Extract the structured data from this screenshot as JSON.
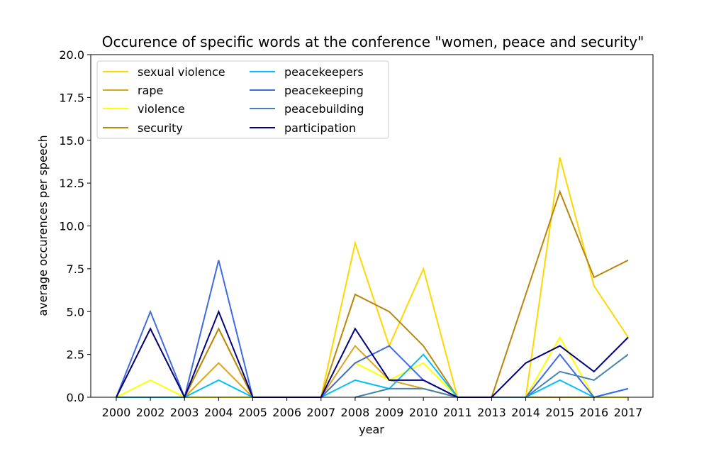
{
  "chart_data": {
    "type": "line",
    "title": "Occurence of specific words at the conference \"women, peace and security\"",
    "xlabel": "year",
    "ylabel": "average occurences per speech",
    "categories": [
      "2000",
      "2002",
      "2003",
      "2004",
      "2005",
      "2006",
      "2007",
      "2008",
      "2009",
      "2010",
      "2011",
      "2013",
      "2014",
      "2015",
      "2016",
      "2017"
    ],
    "ylim": [
      0,
      20
    ],
    "yticks": [
      "0.0",
      "2.5",
      "5.0",
      "7.5",
      "10.0",
      "12.5",
      "15.0",
      "17.5",
      "20.0"
    ],
    "grid": false,
    "legend_position": "top-left",
    "series": [
      {
        "name": "sexual violence",
        "color": "#FFD700",
        "values": [
          0,
          4,
          0,
          4,
          0,
          0,
          0,
          9,
          3,
          7.5,
          0,
          0,
          0,
          14,
          6.5,
          3.5
        ]
      },
      {
        "name": "rape",
        "color": "#DAA520",
        "values": [
          0,
          0,
          0,
          2,
          0,
          0,
          0,
          3,
          1,
          0.5,
          0,
          0,
          0,
          0,
          0,
          0
        ]
      },
      {
        "name": "violence",
        "color": "#FFFF00",
        "values": [
          0,
          1,
          0,
          0,
          0,
          0,
          0,
          2,
          1,
          2,
          0,
          0,
          0,
          3.5,
          0,
          0
        ]
      },
      {
        "name": "security",
        "color": "#B8860B",
        "values": [
          0,
          0,
          0,
          4,
          0,
          0,
          0,
          6,
          5,
          3,
          0,
          0,
          6,
          12,
          7,
          8
        ]
      },
      {
        "name": "peacekeepers",
        "color": "#00BFFF",
        "values": [
          0,
          0,
          0,
          1,
          0,
          0,
          0,
          1,
          0.5,
          2.5,
          0,
          0,
          0,
          1,
          0,
          0.5
        ]
      },
      {
        "name": "peacekeeping",
        "color": "#4169E1",
        "values": [
          0,
          5,
          0,
          8,
          0,
          0,
          0,
          2,
          3,
          1,
          0,
          0,
          0,
          2.5,
          0,
          0.5
        ]
      },
      {
        "name": "peacebuilding",
        "color": "#4682B4",
        "values": [
          null,
          null,
          null,
          null,
          null,
          null,
          null,
          0,
          0.5,
          0.5,
          0,
          0,
          0,
          1.5,
          1,
          2.5
        ]
      },
      {
        "name": "participation",
        "color": "#000080",
        "values": [
          0,
          4,
          0,
          5,
          0,
          0,
          0,
          4,
          1,
          1,
          0,
          0,
          2,
          3,
          1.5,
          3.5
        ]
      }
    ]
  }
}
